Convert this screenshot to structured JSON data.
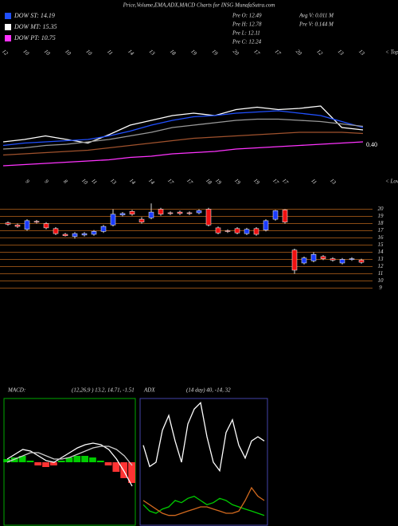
{
  "header": {
    "title": "Price,Volume,EMA,ADX,MACD Charts for INSG MunafaSutra.com",
    "info": [
      "Pre  O: 12.49",
      "Pre  H: 12.78",
      "Pre  L: 12.11",
      "Pre  C: 12.24",
      "Avg  V: 0.011  M",
      "Pre  V: 0.144  M"
    ]
  },
  "chart_data": [
    {
      "type": "line",
      "x_edge_label": "< Tops",
      "categories": [
        "12",
        "10",
        "10",
        "10",
        "10",
        "11",
        "14",
        "13",
        "18",
        "19",
        "19",
        "20",
        "17",
        "17",
        "20",
        "12",
        "13",
        "13"
      ],
      "ylim": [
        0,
        1
      ],
      "annotation": "0.40",
      "series": [
        {
          "name": "DOW MT: 15.35",
          "color": "#ffffff",
          "values": [
            0.28,
            0.3,
            0.33,
            0.3,
            0.27,
            0.34,
            0.42,
            0.46,
            0.5,
            0.52,
            0.5,
            0.55,
            0.57,
            0.55,
            0.56,
            0.58,
            0.4,
            0.38
          ]
        },
        {
          "name": "DOW ST: 14.19",
          "color": "#2050ff",
          "values": [
            0.25,
            0.27,
            0.28,
            0.29,
            0.3,
            0.33,
            0.37,
            0.42,
            0.46,
            0.49,
            0.5,
            0.52,
            0.53,
            0.54,
            0.52,
            0.5,
            0.45,
            0.4
          ]
        },
        {
          "color": "#999999",
          "values": [
            0.22,
            0.23,
            0.25,
            0.26,
            0.28,
            0.3,
            0.33,
            0.36,
            0.4,
            0.42,
            0.44,
            0.46,
            0.47,
            0.47,
            0.46,
            0.45,
            0.43,
            0.41
          ]
        },
        {
          "color": "#a0522d",
          "values": [
            0.17,
            0.18,
            0.19,
            0.2,
            0.21,
            0.23,
            0.25,
            0.27,
            0.29,
            0.31,
            0.32,
            0.33,
            0.34,
            0.35,
            0.36,
            0.36,
            0.36,
            0.35
          ]
        },
        {
          "name": "DOW PT: 10.75",
          "color": "#ff33ff",
          "values": [
            0.08,
            0.09,
            0.1,
            0.11,
            0.12,
            0.13,
            0.15,
            0.16,
            0.18,
            0.19,
            0.2,
            0.22,
            0.23,
            0.24,
            0.25,
            0.26,
            0.27,
            0.28
          ]
        }
      ]
    },
    {
      "type": "candlestick",
      "x_edge_label": "< Lows",
      "categories": [
        null,
        null,
        "9",
        null,
        "9",
        null,
        "8",
        null,
        "10",
        "11",
        null,
        "13",
        null,
        "14",
        null,
        "14",
        null,
        "17",
        null,
        "17",
        null,
        "18",
        "19",
        null,
        "19",
        null,
        "19",
        null,
        "17",
        "17",
        null,
        null,
        "11",
        null,
        "13",
        null,
        null,
        null
      ],
      "open": [
        18.1,
        17.8,
        17.2,
        18.3,
        18,
        17.3,
        16.5,
        16.2,
        16.4,
        16.5,
        16.9,
        17.8,
        19.2,
        19.7,
        18.6,
        18.8,
        20,
        19.5,
        19.6,
        19.5,
        19.5,
        20,
        17.4,
        17,
        17.3,
        16.6,
        17.3,
        17.1,
        18.6,
        19.9,
        14.3,
        12.5,
        12.8,
        13.4,
        13.1,
        12.5,
        13,
        12.9
      ],
      "high": [
        18.3,
        18,
        18.6,
        18.5,
        18.2,
        17.5,
        16.7,
        16.8,
        16.8,
        17.1,
        17.8,
        20,
        19.6,
        19.9,
        18.9,
        20.8,
        20.2,
        19.7,
        19.8,
        19.7,
        20,
        20.2,
        17.6,
        17.2,
        17.5,
        17.4,
        17.5,
        18.6,
        19.9,
        20,
        14.5,
        13.4,
        14,
        13.6,
        13.3,
        13.2,
        13.3,
        13.1
      ],
      "low": [
        17.7,
        17.4,
        17,
        18,
        17.2,
        16.4,
        16.2,
        15.9,
        16.2,
        16.3,
        16.7,
        17.6,
        19,
        19.1,
        18,
        18.6,
        19.1,
        19.2,
        19.2,
        19.2,
        19.3,
        17.6,
        16.5,
        16.7,
        16.5,
        16.4,
        16.3,
        16.9,
        18.4,
        18,
        11,
        12.3,
        12.6,
        12.9,
        12.7,
        12.3,
        12.8,
        12.4
      ],
      "close": [
        17.9,
        17.6,
        18.4,
        18.2,
        17.4,
        16.6,
        16.3,
        16.6,
        16.6,
        16.9,
        17.6,
        19.3,
        19.4,
        19.3,
        18.2,
        19.6,
        19.3,
        19.4,
        19.4,
        19.4,
        19.8,
        17.8,
        16.7,
        16.9,
        16.7,
        17.2,
        16.5,
        18.4,
        19.8,
        18.2,
        11.5,
        13.2,
        13.7,
        13.1,
        12.9,
        13,
        13.1,
        12.6
      ],
      "ylim": [
        8.5,
        20.5
      ],
      "yticks": [
        20,
        19,
        18,
        17,
        16,
        15,
        14,
        13,
        12,
        11,
        10,
        9
      ]
    },
    {
      "type": "line",
      "label": "MACD:",
      "title": "(12,26,9 ) 13.2, 14.71, -1.51",
      "ylim": [
        -4,
        4
      ],
      "series": [
        {
          "color": "#ffffff",
          "values": [
            0.2,
            0.5,
            0.8,
            0.7,
            0.4,
            0.1,
            0,
            0.3,
            0.6,
            0.9,
            1.1,
            1.2,
            1.1,
            0.8,
            0.2,
            -0.6,
            -1.5
          ]
        },
        {
          "color": "#cccccc",
          "values": [
            0,
            0.2,
            0.4,
            0.6,
            0.6,
            0.4,
            0.2,
            0.2,
            0.3,
            0.5,
            0.7,
            0.9,
            1,
            1,
            0.8,
            0.4,
            -0.2
          ]
        }
      ],
      "histogram": [
        0.2,
        0.3,
        0.4,
        0.1,
        -0.2,
        -0.3,
        -0.2,
        0.1,
        0.3,
        0.4,
        0.4,
        0.3,
        0.1,
        -0.2,
        -0.6,
        -1,
        -1.3
      ]
    },
    {
      "type": "line",
      "label": "ADX",
      "title": "(14 day) 40, -14, 32",
      "ylim": [
        0,
        60
      ],
      "series": [
        {
          "color": "#ffffff",
          "values": [
            38,
            28,
            30,
            45,
            52,
            40,
            30,
            48,
            55,
            58,
            42,
            30,
            26,
            44,
            50,
            38,
            32,
            40,
            42,
            40
          ]
        },
        {
          "color": "#00cc00",
          "values": [
            10,
            7,
            6,
            8,
            9,
            12,
            11,
            13,
            14,
            12,
            10,
            11,
            13,
            12,
            10,
            9,
            8,
            7,
            6,
            5
          ]
        },
        {
          "color": "#d2691e",
          "values": [
            12,
            10,
            8,
            6,
            5,
            5,
            6,
            7,
            8,
            9,
            9,
            8,
            7,
            6,
            6,
            7,
            12,
            18,
            14,
            12
          ]
        }
      ]
    }
  ]
}
